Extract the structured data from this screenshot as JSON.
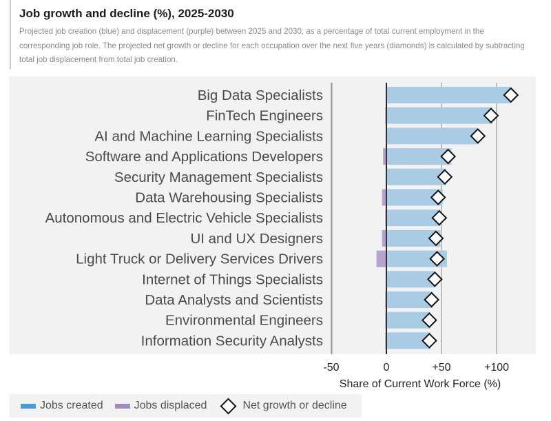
{
  "header": {
    "title": "Job growth and decline (%), 2025-2030",
    "subtitle": "Projected job creation (blue) and displacement (purple) between 2025 and 2030, as a percentage of total current employment in the corresponding job role. The projected net growth or decline for each occupation over the next five years (diamonds) is calculated by subtracting total job displacement from total job creation."
  },
  "colors": {
    "created": "#a9cbe3",
    "displaced": "#b7a3cf",
    "legend_created": "#4a9ad6",
    "legend_displaced": "#a58bc4",
    "zero_line": "#111111",
    "grid": "#888888"
  },
  "legend": {
    "created_label": "Jobs created",
    "displaced_label": "Jobs displaced",
    "net_label": "Net growth or decline"
  },
  "chart_data": {
    "type": "bar",
    "orientation": "horizontal",
    "title": "Job growth and decline (%), 2025-2030",
    "xlabel": "Share of Current Work Force (%)",
    "xlim": [
      -60,
      130
    ],
    "xticks": [
      -50,
      0,
      50,
      100
    ],
    "xtick_labels": [
      "-50",
      "0",
      "+50",
      "+100"
    ],
    "gridlines": [
      -50,
      0,
      50,
      100
    ],
    "categories": [
      "Big Data Specialists",
      "FinTech Engineers",
      "AI and Machine Learning Specialists",
      "Software and Applications Developers",
      "Security Management Specialists",
      "Data Warehousing Specialists",
      "Autonomous and Electric Vehicle Specialists",
      "UI and UX Designers",
      "Light Truck or Delivery Services Drivers",
      "Internet of Things Specialists",
      "Data Analysts and Scientists",
      "Environmental Engineers",
      "Information Security Analysts"
    ],
    "series": [
      {
        "name": "Jobs created",
        "values": [
          113,
          96,
          83,
          59,
          54,
          51,
          49,
          49,
          55,
          44,
          42,
          40,
          40
        ]
      },
      {
        "name": "Jobs displaced",
        "values": [
          0,
          -1,
          0,
          -3,
          0,
          -4,
          -1,
          -4,
          -9,
          0,
          -1,
          -1,
          -1
        ]
      },
      {
        "name": "Net growth or decline",
        "values": [
          113,
          95,
          83,
          56,
          53,
          47,
          48,
          45,
          46,
          44,
          41,
          39,
          39
        ]
      }
    ]
  }
}
